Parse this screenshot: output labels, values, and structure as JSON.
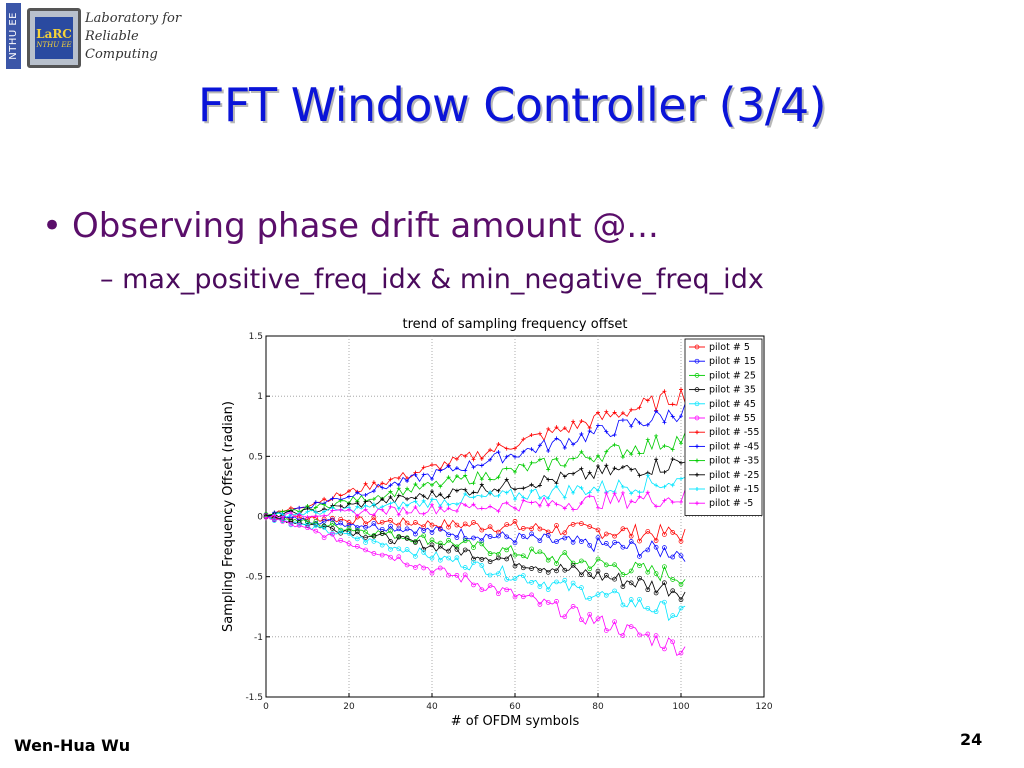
{
  "logo": {
    "side_text": "NTHU EE",
    "chip_title": "LaRC",
    "chip_subtitle": "NTHU EE",
    "lab_line1": "Laboratory for",
    "lab_line2": "Reliable",
    "lab_line3": "Computing"
  },
  "slide": {
    "title": "FFT Window Controller (3/4)",
    "bullet_marker": "•",
    "bullet_text": "Observing phase drift amount @...",
    "sub_marker": "–",
    "sub_text": "max_positive_freq_idx & min_negative_freq_idx",
    "author": "Wen-Hua Wu",
    "page_number": "24"
  },
  "chart_data": {
    "type": "line",
    "title": "trend of sampling frequency offset",
    "xlabel": "# of OFDM symbols",
    "ylabel": "Sampling Frequency Offset (radian)",
    "xlim": [
      0,
      120
    ],
    "ylim": [
      -1.5,
      1.5
    ],
    "xticks": [
      "0",
      "20",
      "40",
      "60",
      "80",
      "100",
      "120"
    ],
    "yticks": [
      "1.5",
      "1",
      "0.5",
      "0",
      "-0.5",
      "-1",
      "-1.5"
    ],
    "grid": true,
    "legend_position": "top-right",
    "series": [
      {
        "name": "pilot # 5",
        "color": "#ff0000",
        "marker": "circle",
        "end_value": -0.15
      },
      {
        "name": "pilot # 15",
        "color": "#0000ff",
        "marker": "circle",
        "end_value": -0.3
      },
      {
        "name": "pilot # 25",
        "color": "#00cc00",
        "marker": "circle",
        "end_value": -0.5
      },
      {
        "name": "pilot # 35",
        "color": "#000000",
        "marker": "circle",
        "end_value": -0.62
      },
      {
        "name": "pilot # 45",
        "color": "#00e5ff",
        "marker": "circle",
        "end_value": -0.82
      },
      {
        "name": "pilot # 55",
        "color": "#ff00ff",
        "marker": "circle",
        "end_value": -1.1
      },
      {
        "name": "pilot # -55",
        "color": "#ff0000",
        "marker": "star",
        "end_value": 1.02
      },
      {
        "name": "pilot # -45",
        "color": "#0000ff",
        "marker": "star",
        "end_value": 0.88
      },
      {
        "name": "pilot # -35",
        "color": "#00cc00",
        "marker": "star",
        "end_value": 0.65
      },
      {
        "name": "pilot # -25",
        "color": "#000000",
        "marker": "star",
        "end_value": 0.45
      },
      {
        "name": "pilot # -15",
        "color": "#00e5ff",
        "marker": "star",
        "end_value": 0.3
      },
      {
        "name": "pilot # -5",
        "color": "#ff00ff",
        "marker": "star",
        "end_value": 0.16
      }
    ],
    "x_end": 101
  }
}
